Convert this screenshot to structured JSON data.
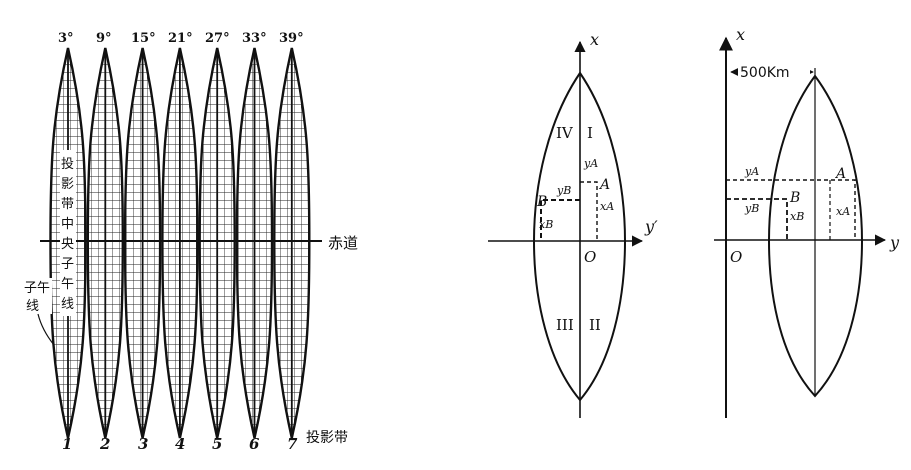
{
  "panel1": {
    "meridians": [
      "3°",
      "9°",
      "15°",
      "21°",
      "27°",
      "33°",
      "39°"
    ],
    "zone_numbers": [
      "1",
      "2",
      "3",
      "4",
      "5",
      "6",
      "7"
    ],
    "equator_label": "赤道",
    "projection_zone_label": "投影带",
    "meridian_label_line1": "子午",
    "meridian_label_line2": "线",
    "central_meridian_label": [
      "投",
      "影",
      "带",
      "中",
      "央",
      "子",
      "午",
      "线"
    ]
  },
  "panel2": {
    "x_axis": "x",
    "y_axis": "y′",
    "origin": "O",
    "quadrants": [
      "IV",
      "I",
      "III",
      "II"
    ],
    "point_a": "A",
    "point_b": "B",
    "y_a": "yA",
    "y_b": "yB",
    "x_a": "xA",
    "x_b": "xB"
  },
  "panel3": {
    "x_axis": "x",
    "y_axis": "y",
    "origin": "O",
    "offset_label": "500Km",
    "point_a": "A",
    "point_b": "B",
    "y_a": "yA",
    "y_b": "yB",
    "x_a": "xA",
    "x_b": "xB"
  }
}
